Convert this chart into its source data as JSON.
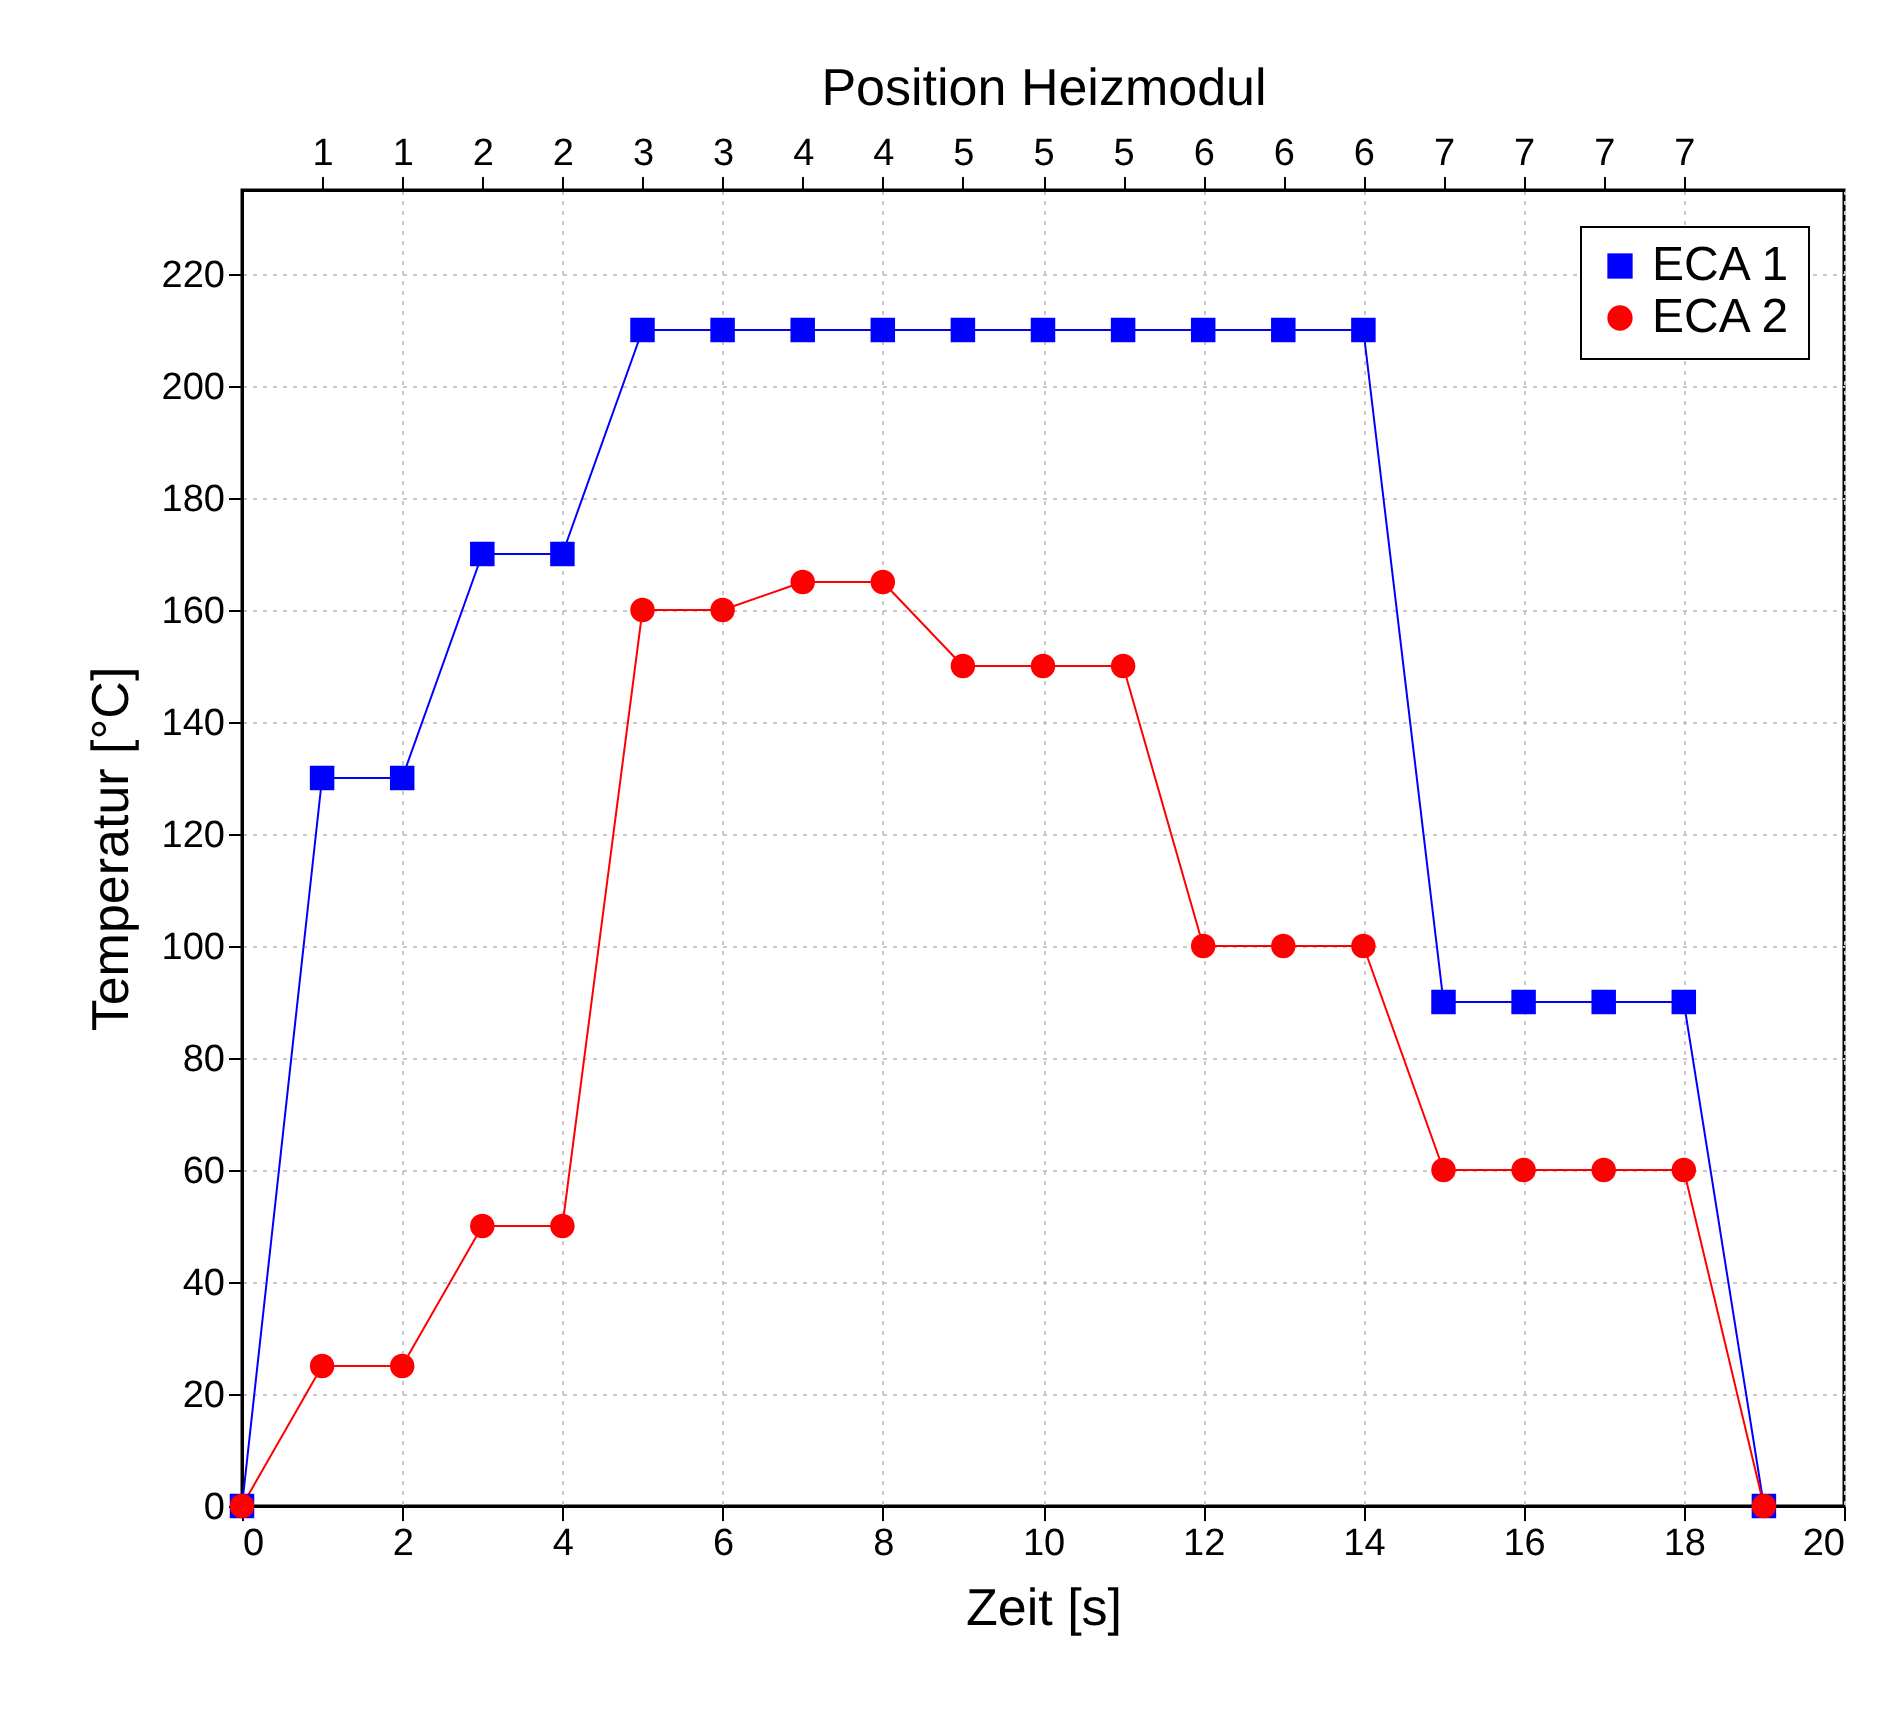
{
  "chart_data": {
    "type": "line",
    "xlabel": "Zeit [s]",
    "ylabel": "Temperatur [°C]",
    "x2label": "Position Heizmodul",
    "x": [
      0,
      1,
      2,
      3,
      4,
      5,
      6,
      7,
      8,
      9,
      10,
      11,
      12,
      13,
      14,
      15,
      16,
      17,
      18,
      19
    ],
    "series": [
      {
        "name": "ECA 1",
        "color": "#0000ff",
        "marker": "square",
        "values": [
          0,
          130,
          130,
          170,
          170,
          210,
          210,
          210,
          210,
          210,
          210,
          210,
          210,
          210,
          210,
          90,
          90,
          90,
          90,
          0
        ]
      },
      {
        "name": "ECA 2",
        "color": "#ff0000",
        "marker": "circle",
        "values": [
          0,
          25,
          25,
          50,
          50,
          160,
          160,
          165,
          165,
          150,
          150,
          150,
          100,
          100,
          100,
          60,
          60,
          60,
          60,
          0
        ]
      }
    ],
    "xlim": [
      0,
      20
    ],
    "xticks": [
      0,
      2,
      4,
      6,
      8,
      10,
      12,
      14,
      16,
      18,
      20
    ],
    "ylim": [
      0,
      235
    ],
    "yticks": [
      0,
      20,
      40,
      60,
      80,
      100,
      120,
      140,
      160,
      180,
      200,
      220
    ],
    "annotations": [
      {
        "text": "1",
        "x": 1
      },
      {
        "text": "1",
        "x": 2
      },
      {
        "text": "2",
        "x": 3
      },
      {
        "text": "2",
        "x": 4
      },
      {
        "text": "3",
        "x": 5
      },
      {
        "text": "3",
        "x": 6
      },
      {
        "text": "4",
        "x": 7
      },
      {
        "text": "4",
        "x": 8
      },
      {
        "text": "5",
        "x": 9
      },
      {
        "text": "5",
        "x": 10
      },
      {
        "text": "5",
        "x": 11
      },
      {
        "text": "6",
        "x": 12
      },
      {
        "text": "6",
        "x": 13
      },
      {
        "text": "6",
        "x": 14
      },
      {
        "text": "7",
        "x": 15
      },
      {
        "text": "7",
        "x": 16
      },
      {
        "text": "7",
        "x": 17
      },
      {
        "text": "7",
        "x": 18
      }
    ],
    "grid": true,
    "legend": "top right",
    "line_style": "solid"
  }
}
